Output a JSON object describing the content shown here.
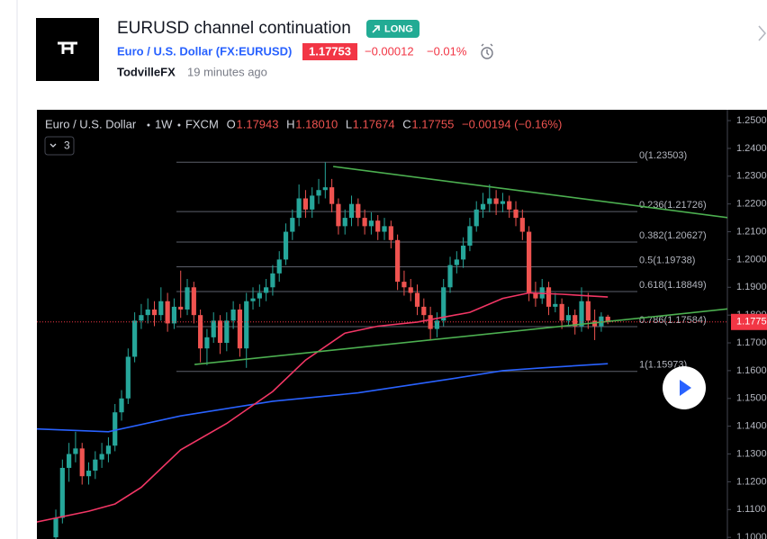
{
  "header": {
    "title": "EURUSD channel continuation",
    "badge": "LONG",
    "symbol": "Euro / U.S. Dollar (FX:EURUSD)",
    "price": "1.17753",
    "change": "−0.00012",
    "change_pct": "−0.01%",
    "author": "TodvilleFX",
    "time": "19 minutes ago"
  },
  "chart_data": {
    "type": "candlestick",
    "title": "Euro / U.S. Dollar",
    "interval": "1W",
    "exchange": "FXCM",
    "ohlc": [
      {
        "label": "O",
        "value": "1.17943"
      },
      {
        "label": "H",
        "value": "1.18010"
      },
      {
        "label": "L",
        "value": "1.17674"
      },
      {
        "label": "C",
        "value": "1.17755"
      }
    ],
    "change": "−0.00194 (−0.16%)",
    "collapsed_count": "3",
    "up_color": "#26a69a",
    "down_color": "#ef5350",
    "xlim": [
      -2.88,
      102.19
    ],
    "ylim": [
      1.0994,
      1.2539
    ],
    "yticks": [
      {
        "value": 1.25,
        "label": "1.2500"
      },
      {
        "value": 1.24,
        "label": "1.2400"
      },
      {
        "value": 1.23,
        "label": "1.2300"
      },
      {
        "value": 1.22,
        "label": "1.2200"
      },
      {
        "value": 1.21,
        "label": "1.2100"
      },
      {
        "value": 1.2,
        "label": "1.2000"
      },
      {
        "value": 1.19,
        "label": "1.1900"
      },
      {
        "value": 1.18,
        "label": "1.1800"
      },
      {
        "value": 1.17,
        "label": "1.1700"
      },
      {
        "value": 1.16,
        "label": "1.1600"
      },
      {
        "value": 1.15,
        "label": "1.1500"
      },
      {
        "value": 1.14,
        "label": "1.1400"
      },
      {
        "value": 1.13,
        "label": "1.1300"
      },
      {
        "value": 1.12,
        "label": "1.1200"
      },
      {
        "value": 1.11,
        "label": "1.1100"
      },
      {
        "value": 1.1,
        "label": "1.1000"
      }
    ],
    "last_price": {
      "value": 1.17753,
      "label": "1.1775"
    },
    "last_price_color": "#f23645",
    "candles": [
      [
        1.1,
        1.11,
        1.097,
        1.107
      ],
      [
        1.107,
        1.128,
        1.105,
        1.125
      ],
      [
        1.125,
        1.134,
        1.12,
        1.13
      ],
      [
        1.13,
        1.138,
        1.127,
        1.132
      ],
      [
        1.132,
        1.134,
        1.119,
        1.122
      ],
      [
        1.122,
        1.127,
        1.119,
        1.124
      ],
      [
        1.124,
        1.131,
        1.121,
        1.128
      ],
      [
        1.128,
        1.134,
        1.125,
        1.13
      ],
      [
        1.13,
        1.136,
        1.127,
        1.133
      ],
      [
        1.133,
        1.148,
        1.131,
        1.145
      ],
      [
        1.145,
        1.153,
        1.142,
        1.15
      ],
      [
        1.15,
        1.168,
        1.148,
        1.165
      ],
      [
        1.165,
        1.181,
        1.163,
        1.178
      ],
      [
        1.178,
        1.184,
        1.175,
        1.18
      ],
      [
        1.18,
        1.186,
        1.177,
        1.182
      ],
      [
        1.182,
        1.185,
        1.176,
        1.18
      ],
      [
        1.18,
        1.19,
        1.178,
        1.185
      ],
      [
        1.185,
        1.188,
        1.174,
        1.177
      ],
      [
        1.177,
        1.186,
        1.175,
        1.183
      ],
      [
        1.183,
        1.196,
        1.179,
        1.182
      ],
      [
        1.182,
        1.193,
        1.18,
        1.19
      ],
      [
        1.19,
        1.192,
        1.177,
        1.18
      ],
      [
        1.18,
        1.182,
        1.163,
        1.168
      ],
      [
        1.168,
        1.175,
        1.162,
        1.172
      ],
      [
        1.172,
        1.181,
        1.17,
        1.178
      ],
      [
        1.178,
        1.18,
        1.166,
        1.17
      ],
      [
        1.17,
        1.181,
        1.167,
        1.178
      ],
      [
        1.178,
        1.185,
        1.175,
        1.182
      ],
      [
        1.182,
        1.184,
        1.165,
        1.168
      ],
      [
        1.168,
        1.188,
        1.161,
        1.185
      ],
      [
        1.185,
        1.19,
        1.182,
        1.186
      ],
      [
        1.186,
        1.191,
        1.183,
        1.188
      ],
      [
        1.188,
        1.193,
        1.185,
        1.19
      ],
      [
        1.19,
        1.198,
        1.187,
        1.195
      ],
      [
        1.195,
        1.203,
        1.192,
        1.2
      ],
      [
        1.2,
        1.213,
        1.198,
        1.21
      ],
      [
        1.21,
        1.218,
        1.207,
        1.215
      ],
      [
        1.215,
        1.227,
        1.212,
        1.222
      ],
      [
        1.222,
        1.225,
        1.215,
        1.218
      ],
      [
        1.218,
        1.226,
        1.215,
        1.223
      ],
      [
        1.223,
        1.229,
        1.22,
        1.225
      ],
      [
        1.225,
        1.235,
        1.222,
        1.226
      ],
      [
        1.226,
        1.229,
        1.217,
        1.22
      ],
      [
        1.22,
        1.222,
        1.209,
        1.212
      ],
      [
        1.212,
        1.218,
        1.209,
        1.215
      ],
      [
        1.215,
        1.223,
        1.212,
        1.22
      ],
      [
        1.22,
        1.222,
        1.212,
        1.215
      ],
      [
        1.215,
        1.218,
        1.209,
        1.212
      ],
      [
        1.212,
        1.217,
        1.209,
        1.214
      ],
      [
        1.214,
        1.216,
        1.207,
        1.21
      ],
      [
        1.21,
        1.215,
        1.207,
        1.212
      ],
      [
        1.212,
        1.214,
        1.204,
        1.207
      ],
      [
        1.207,
        1.209,
        1.189,
        1.192
      ],
      [
        1.192,
        1.196,
        1.187,
        1.19
      ],
      [
        1.19,
        1.193,
        1.185,
        1.188
      ],
      [
        1.188,
        1.191,
        1.18,
        1.183
      ],
      [
        1.183,
        1.186,
        1.177,
        1.18
      ],
      [
        1.18,
        1.183,
        1.171,
        1.175
      ],
      [
        1.175,
        1.181,
        1.172,
        1.178
      ],
      [
        1.178,
        1.193,
        1.176,
        1.19
      ],
      [
        1.19,
        1.201,
        1.188,
        1.198
      ],
      [
        1.198,
        1.203,
        1.195,
        1.2
      ],
      [
        1.2,
        1.208,
        1.197,
        1.205
      ],
      [
        1.205,
        1.215,
        1.203,
        1.212
      ],
      [
        1.212,
        1.221,
        1.21,
        1.218
      ],
      [
        1.218,
        1.224,
        1.215,
        1.22
      ],
      [
        1.22,
        1.227,
        1.217,
        1.222
      ],
      [
        1.222,
        1.225,
        1.216,
        1.22
      ],
      [
        1.22,
        1.224,
        1.217,
        1.221
      ],
      [
        1.221,
        1.223,
        1.215,
        1.218
      ],
      [
        1.218,
        1.221,
        1.212,
        1.215
      ],
      [
        1.215,
        1.218,
        1.207,
        1.21
      ],
      [
        1.21,
        1.212,
        1.185,
        1.188
      ],
      [
        1.188,
        1.192,
        1.183,
        1.186
      ],
      [
        1.186,
        1.193,
        1.184,
        1.19
      ],
      [
        1.19,
        1.192,
        1.18,
        1.183
      ],
      [
        1.183,
        1.188,
        1.181,
        1.184
      ],
      [
        1.184,
        1.186,
        1.175,
        1.178
      ],
      [
        1.178,
        1.183,
        1.176,
        1.18
      ],
      [
        1.18,
        1.182,
        1.173,
        1.176
      ],
      [
        1.176,
        1.19,
        1.174,
        1.185
      ],
      [
        1.185,
        1.188,
        1.175,
        1.178
      ],
      [
        1.178,
        1.182,
        1.171,
        1.176
      ],
      [
        1.176,
        1.181,
        1.174,
        1.1795
      ],
      [
        1.17943,
        1.1801,
        1.17674,
        1.17755
      ]
    ],
    "lines": [
      {
        "color": "#2962ff",
        "x": [
          -3,
          8,
          19,
          33,
          46,
          60,
          68,
          74,
          84
        ],
        "values": [
          1.139,
          1.138,
          1.1437,
          1.149,
          1.152,
          1.157,
          1.16,
          1.161,
          1.1625
        ]
      },
      {
        "color": "#f23665",
        "x": [
          -3,
          5,
          9,
          13,
          19,
          26,
          33,
          38,
          44,
          49,
          55,
          63,
          68,
          72,
          77,
          84
        ],
        "values": [
          1.1055,
          1.1094,
          1.112,
          1.118,
          1.1315,
          1.141,
          1.1525,
          1.1638,
          1.1735,
          1.176,
          1.1775,
          1.181,
          1.186,
          1.188,
          1.1875,
          1.1865
        ]
      },
      {
        "color": "#4caf50",
        "x": [
          42.2,
          102.5
        ],
        "values": [
          1.2335,
          1.215
        ]
      },
      {
        "color": "#4caf50",
        "x": [
          21.1,
          102.5
        ],
        "values": [
          1.1622,
          1.1823
        ]
      }
    ],
    "fib_levels": [
      {
        "value": 1.23503,
        "label": "0(1.23503)"
      },
      {
        "value": 1.21726,
        "label": "0.236(1.21726)"
      },
      {
        "value": 1.20627,
        "label": "0.382(1.20627)"
      },
      {
        "value": 1.19738,
        "label": "0.5(1.19738)"
      },
      {
        "value": 1.18849,
        "label": "0.618(1.18849)"
      },
      {
        "value": 1.17584,
        "label": "0.786(1.17584)"
      },
      {
        "value": 1.15973,
        "label": "1(1.15973)"
      }
    ]
  }
}
